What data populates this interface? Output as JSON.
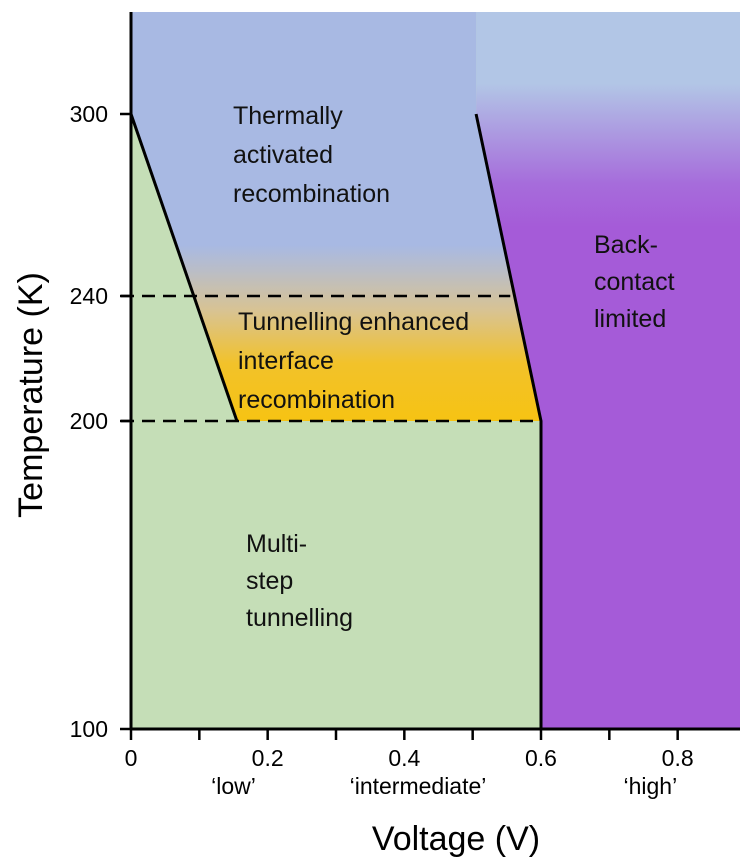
{
  "chart_data": {
    "type": "phase-diagram",
    "xlabel": "Voltage (V)",
    "ylabel": "Temperature (K)",
    "xlim": [
      0,
      0.9
    ],
    "x_ticks": [
      {
        "value": 0,
        "label": "0"
      },
      {
        "value": 0.2,
        "label": "0.2"
      },
      {
        "value": 0.4,
        "label": "0.4"
      },
      {
        "value": 0.6,
        "label": "0.6"
      },
      {
        "value": 0.8,
        "label": "0.8"
      }
    ],
    "x_minor_ticks": [
      0.1,
      0.3,
      0.5,
      0.7
    ],
    "y_ticks": [
      {
        "value": 100,
        "label": "100"
      },
      {
        "value": 200,
        "label": "200"
      },
      {
        "value": 240,
        "label": "240"
      },
      {
        "value": 300,
        "label": "300"
      }
    ],
    "x_categories": [
      {
        "label": "‘low’",
        "x": 0.15
      },
      {
        "label": "‘intermediate’",
        "x": 0.42
      },
      {
        "label": "‘high’",
        "x": 0.76
      }
    ],
    "dashed_lines": [
      200,
      240
    ],
    "boundaries": [
      {
        "name": "low-boundary",
        "points": [
          [
            0.0,
            300
          ],
          [
            0.155,
            200
          ]
        ]
      },
      {
        "name": "high-boundary",
        "points": [
          [
            0.505,
            300
          ],
          [
            0.6,
            200
          ],
          [
            0.6,
            100
          ]
        ]
      }
    ],
    "regions": [
      {
        "name": "thermally-activated",
        "lines": [
          "Thermally",
          "activated",
          "recombination"
        ],
        "color": "#a8b9e3"
      },
      {
        "name": "tunnelling-enhanced",
        "lines": [
          "Tunnelling enhanced",
          "interface",
          "recombination"
        ],
        "color": "#f3c016"
      },
      {
        "name": "multi-step",
        "lines": [
          "Multi-",
          "step",
          "tunnelling"
        ],
        "color": "#c5deb7"
      },
      {
        "name": "back-contact",
        "lines": [
          "Back-",
          "contact",
          "limited"
        ],
        "color": "#a55bd8"
      }
    ]
  }
}
